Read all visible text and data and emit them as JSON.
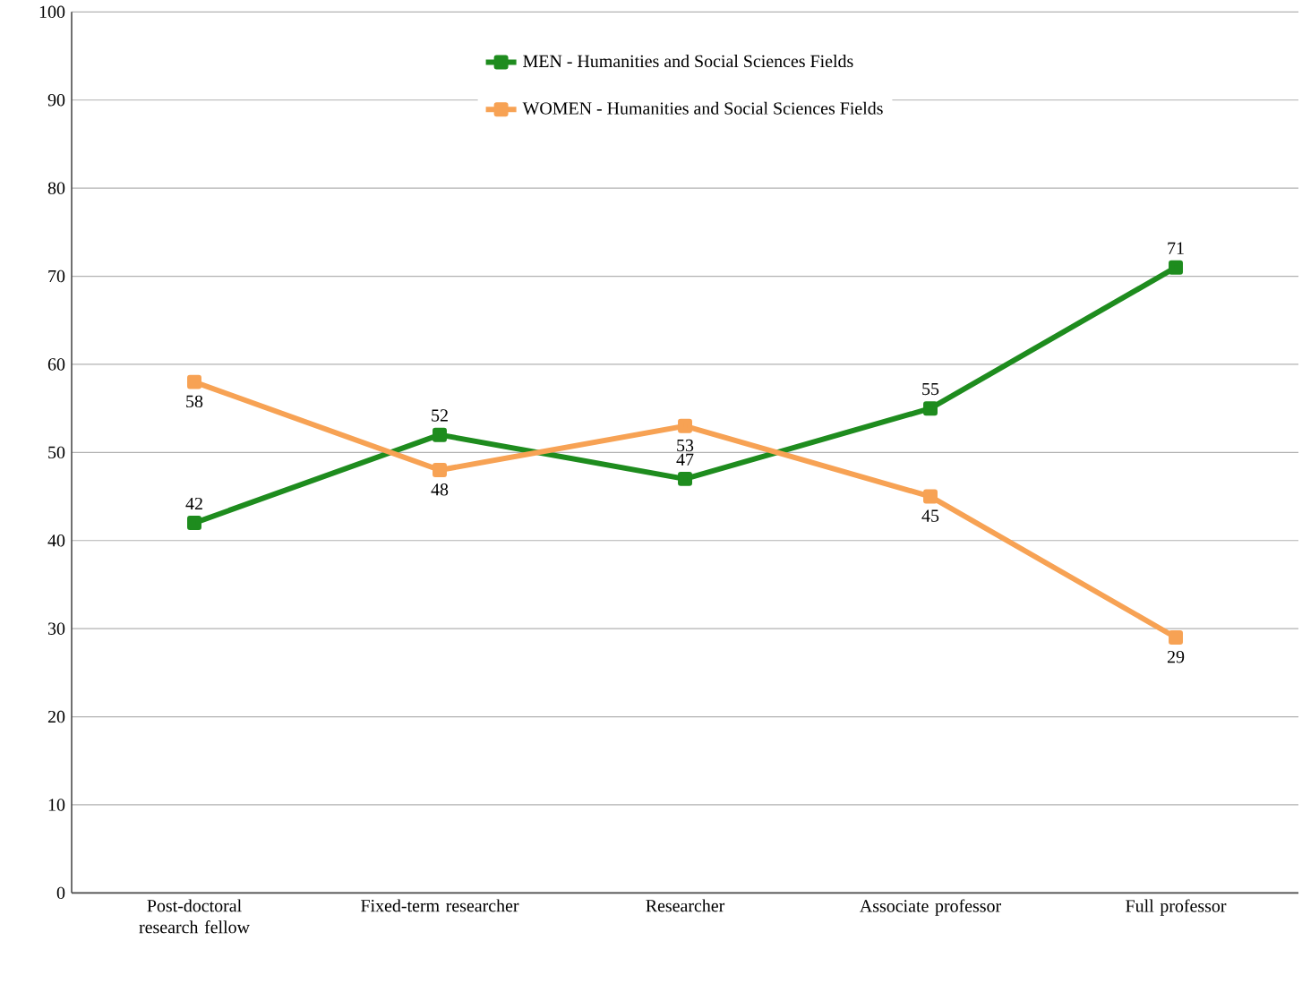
{
  "chart_data": {
    "type": "line",
    "categories": [
      "Post-doctoral research fellow",
      "Fixed-term researcher",
      "Researcher",
      "Associate professor",
      "Full professor"
    ],
    "series": [
      {
        "name": "MEN - Humanities and Social Sciences Fields",
        "color": "#1e8c1e",
        "values": [
          42,
          52,
          47,
          55,
          71
        ]
      },
      {
        "name": "WOMEN - Humanities and Social Sciences Fields",
        "color": "#f7a254",
        "values": [
          58,
          48,
          53,
          45,
          29
        ]
      }
    ],
    "ylim": [
      0,
      100
    ],
    "yticks": [
      0,
      10,
      20,
      30,
      40,
      50,
      60,
      70,
      80,
      90,
      100
    ],
    "grid": "y",
    "legend": "top",
    "marker": "square",
    "line_style": "solid",
    "data_labels": true
  }
}
